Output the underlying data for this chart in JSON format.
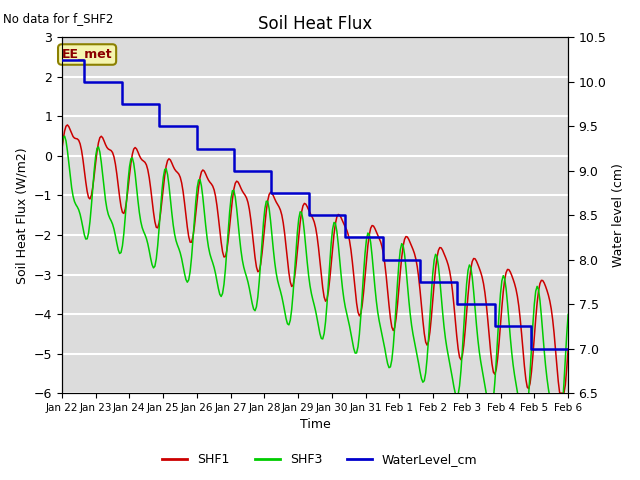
{
  "title": "Soil Heat Flux",
  "top_left_note": "No data for f_SHF2",
  "ylabel_left": "Soil Heat Flux (W/m2)",
  "ylabel_right": "Water level (cm)",
  "xlabel": "Time",
  "ylim_left": [
    -6.0,
    3.0
  ],
  "ylim_right": [
    6.5,
    10.5
  ],
  "x_tick_labels": [
    "Jan 22",
    "Jan 23",
    "Jan 24",
    "Jan 25",
    "Jan 26",
    "Jan 27",
    "Jan 28",
    "Jan 29",
    "Jan 30",
    "Jan 31",
    "Feb 1",
    "Feb 2",
    "Feb 3",
    "Feb 4",
    "Feb 5",
    "Feb 6"
  ],
  "annotation_box": "EE_met",
  "plot_bg_color": "#dcdcdc",
  "grid_color": "#ffffff",
  "shf1_color": "#cc0000",
  "shf3_color": "#00cc00",
  "wl_color": "#0000cc",
  "legend_entries": [
    "SHF1",
    "SHF3",
    "WaterLevel_cm"
  ]
}
